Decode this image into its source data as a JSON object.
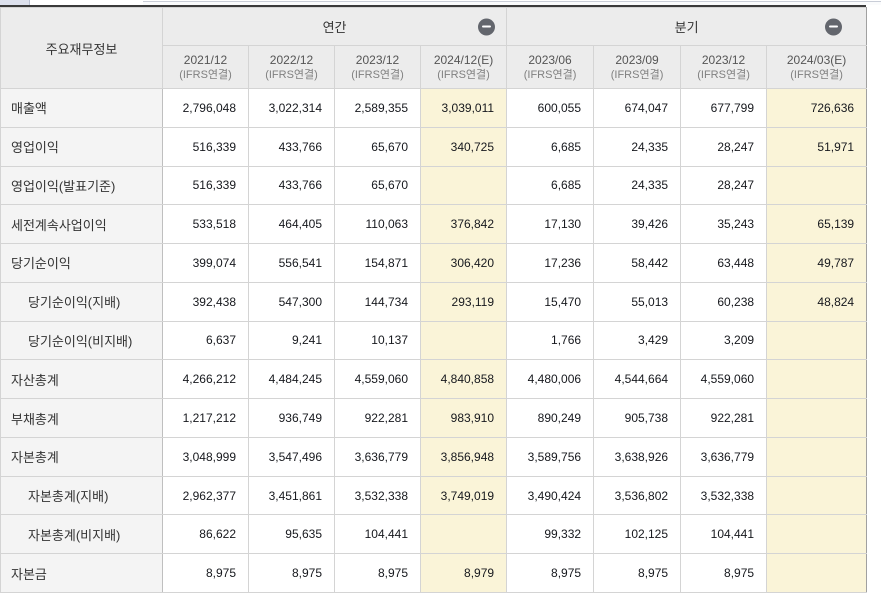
{
  "table": {
    "corner_label": "주요재무정보",
    "groups": [
      {
        "label": "연간",
        "collapse_icon": "minus-circle-icon"
      },
      {
        "label": "분기",
        "collapse_icon": "minus-circle-icon"
      }
    ],
    "columns": [
      {
        "period": "2021/12",
        "basis": "(IFRS연결)",
        "group": "연간",
        "estimate": false
      },
      {
        "period": "2022/12",
        "basis": "(IFRS연결)",
        "group": "연간",
        "estimate": false
      },
      {
        "period": "2023/12",
        "basis": "(IFRS연결)",
        "group": "연간",
        "estimate": false
      },
      {
        "period": "2024/12(E)",
        "basis": "(IFRS연결)",
        "group": "연간",
        "estimate": true
      },
      {
        "period": "2023/06",
        "basis": "(IFRS연결)",
        "group": "분기",
        "estimate": false
      },
      {
        "period": "2023/09",
        "basis": "(IFRS연결)",
        "group": "분기",
        "estimate": false
      },
      {
        "period": "2023/12",
        "basis": "(IFRS연결)",
        "group": "분기",
        "estimate": false
      },
      {
        "period": "2024/03(E)",
        "basis": "(IFRS연결)",
        "group": "분기",
        "estimate": true
      }
    ],
    "rows": [
      {
        "label": "매출액",
        "indent": false,
        "values": [
          "2,796,048",
          "3,022,314",
          "2,589,355",
          "3,039,011",
          "600,055",
          "674,047",
          "677,799",
          "726,636"
        ]
      },
      {
        "label": "영업이익",
        "indent": false,
        "values": [
          "516,339",
          "433,766",
          "65,670",
          "340,725",
          "6,685",
          "24,335",
          "28,247",
          "51,971"
        ]
      },
      {
        "label": "영업이익(발표기준)",
        "indent": false,
        "values": [
          "516,339",
          "433,766",
          "65,670",
          "",
          "6,685",
          "24,335",
          "28,247",
          ""
        ]
      },
      {
        "label": "세전계속사업이익",
        "indent": false,
        "values": [
          "533,518",
          "464,405",
          "110,063",
          "376,842",
          "17,130",
          "39,426",
          "35,243",
          "65,139"
        ]
      },
      {
        "label": "당기순이익",
        "indent": false,
        "values": [
          "399,074",
          "556,541",
          "154,871",
          "306,420",
          "17,236",
          "58,442",
          "63,448",
          "49,787"
        ]
      },
      {
        "label": "당기순이익(지배)",
        "indent": true,
        "values": [
          "392,438",
          "547,300",
          "144,734",
          "293,119",
          "15,470",
          "55,013",
          "60,238",
          "48,824"
        ]
      },
      {
        "label": "당기순이익(비지배)",
        "indent": true,
        "values": [
          "6,637",
          "9,241",
          "10,137",
          "",
          "1,766",
          "3,429",
          "3,209",
          ""
        ]
      },
      {
        "label": "자산총계",
        "indent": false,
        "values": [
          "4,266,212",
          "4,484,245",
          "4,559,060",
          "4,840,858",
          "4,480,006",
          "4,544,664",
          "4,559,060",
          ""
        ]
      },
      {
        "label": "부채총계",
        "indent": false,
        "values": [
          "1,217,212",
          "936,749",
          "922,281",
          "983,910",
          "890,249",
          "905,738",
          "922,281",
          ""
        ]
      },
      {
        "label": "자본총계",
        "indent": false,
        "values": [
          "3,048,999",
          "3,547,496",
          "3,636,779",
          "3,856,948",
          "3,589,756",
          "3,638,926",
          "3,636,779",
          ""
        ]
      },
      {
        "label": "자본총계(지배)",
        "indent": true,
        "values": [
          "2,962,377",
          "3,451,861",
          "3,532,338",
          "3,749,019",
          "3,490,424",
          "3,536,802",
          "3,532,338",
          ""
        ]
      },
      {
        "label": "자본총계(비지배)",
        "indent": true,
        "values": [
          "86,622",
          "95,635",
          "104,441",
          "",
          "99,332",
          "102,125",
          "104,441",
          ""
        ]
      },
      {
        "label": "자본금",
        "indent": false,
        "values": [
          "8,975",
          "8,975",
          "8,975",
          "8,979",
          "8,975",
          "8,975",
          "8,975",
          ""
        ]
      }
    ],
    "colors": {
      "estimate_bg": "#faf4d8",
      "header_bg": "#ececec",
      "label_col_bg": "#f4f4f4",
      "top_border": "#3a3a3a",
      "collapse_icon_bg": "#63666d"
    }
  }
}
